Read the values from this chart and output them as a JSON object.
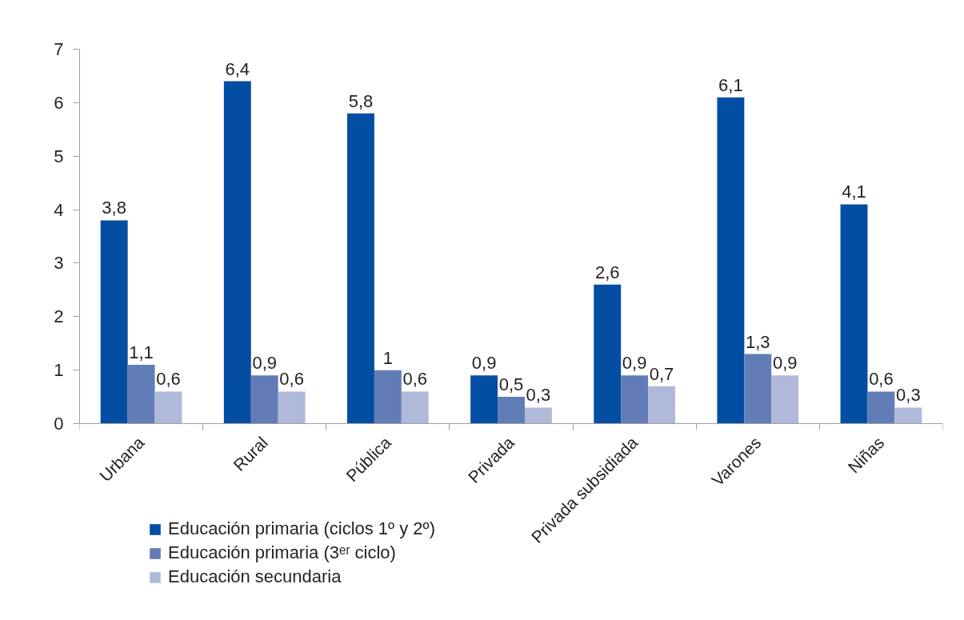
{
  "chart_data": {
    "type": "bar",
    "categories": [
      "Urbana",
      "Rural",
      "Pública",
      "Privada",
      "Privada subsidiada",
      "Varones",
      "Niñas"
    ],
    "series": [
      {
        "name": "Educación primaria (ciclos 1º y 2º)",
        "color": "#034ea2",
        "values": [
          3.8,
          6.4,
          5.8,
          0.9,
          2.6,
          6.1,
          4.1
        ],
        "value_labels": [
          "3,8",
          "6,4",
          "5,8",
          "0,9",
          "2,6",
          "6,1",
          "4,1"
        ]
      },
      {
        "name": "Educación primaria (3ᵉʳ ciclo)",
        "color": "#627cb8",
        "values": [
          1.1,
          0.9,
          1.0,
          0.5,
          0.9,
          1.3,
          0.6
        ],
        "value_labels": [
          "1,1",
          "0,9",
          "1",
          "0,5",
          "0,9",
          "1,3",
          "0,6"
        ]
      },
      {
        "name": "Educación secundaria",
        "color": "#b0b9da",
        "values": [
          0.6,
          0.6,
          0.6,
          0.3,
          0.7,
          0.9,
          0.3
        ],
        "value_labels": [
          "0,6",
          "0,6",
          "0,6",
          "0,3",
          "0,7",
          "0,9",
          "0,3"
        ]
      }
    ],
    "ylim": [
      0,
      7
    ],
    "yticks": [
      0,
      1,
      2,
      3,
      4,
      5,
      6,
      7
    ],
    "grid": false,
    "legend": "bottom"
  }
}
